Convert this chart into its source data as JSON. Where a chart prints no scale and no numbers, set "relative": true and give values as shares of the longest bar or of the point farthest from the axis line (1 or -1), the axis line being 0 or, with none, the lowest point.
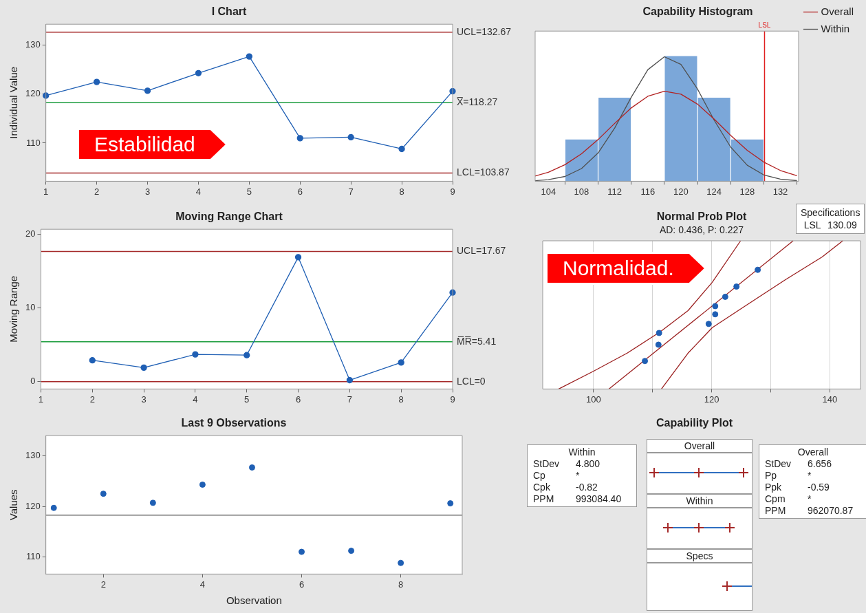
{
  "chart_data": [
    {
      "type": "line",
      "title": "I Chart",
      "ylabel": "Individual Value",
      "categories": [
        "1",
        "2",
        "3",
        "4",
        "5",
        "6",
        "7",
        "8",
        "9"
      ],
      "values": [
        119.7,
        122.5,
        120.7,
        124.3,
        127.7,
        111.0,
        111.2,
        108.8,
        120.6
      ],
      "color": "#1f5fb4",
      "marker": "circle",
      "ylim": [
        102.2,
        134.3
      ],
      "yticks": [
        110,
        120,
        130
      ],
      "ref_lines": [
        {
          "axis": "y",
          "value": 132.67,
          "label": "UCL=132.67",
          "color": "#a52a2a"
        },
        {
          "axis": "y",
          "value": 118.27,
          "label": "X̅=118.27",
          "color": "#1a9c3c"
        },
        {
          "axis": "y",
          "value": 103.87,
          "label": "LCL=103.87",
          "color": "#a52a2a"
        }
      ],
      "annotations": [
        "Estabilidad"
      ]
    },
    {
      "type": "histogram",
      "title": "Capability Histogram",
      "relative": true,
      "bins": [
        106,
        110,
        114,
        118,
        122,
        126,
        130
      ],
      "values": [
        0.333,
        0.667,
        0,
        1,
        0.667,
        0.333
      ],
      "color": "#7ba7d9",
      "xlim": [
        102.4,
        134.2
      ],
      "xticks": [
        104,
        108,
        112,
        116,
        120,
        124,
        128,
        132
      ],
      "series": [
        {
          "name": "Overall",
          "type": "line",
          "color": "#b22222",
          "marker": "none",
          "x": [
            102.4,
            104,
            106,
            108,
            110,
            112,
            114,
            116,
            118,
            120,
            122,
            124,
            126,
            128,
            130,
            132,
            134
          ],
          "values": [
            0.042,
            0.072,
            0.132,
            0.219,
            0.333,
            0.462,
            0.586,
            0.679,
            0.719,
            0.696,
            0.616,
            0.497,
            0.367,
            0.247,
            0.153,
            0.086,
            0.044
          ]
        },
        {
          "name": "Within",
          "type": "line",
          "color": "#505050",
          "marker": "none",
          "x": [
            102.4,
            104,
            106,
            108,
            110,
            112,
            114,
            116,
            118,
            120,
            122,
            124,
            126,
            128,
            130,
            132,
            134
          ],
          "values": [
            0.004,
            0.012,
            0.038,
            0.101,
            0.226,
            0.425,
            0.671,
            0.891,
            0.995,
            0.934,
            0.737,
            0.489,
            0.273,
            0.128,
            0.05,
            0.017,
            0.005
          ]
        }
      ],
      "ref_lines": [
        {
          "axis": "x",
          "value": 130.09,
          "label": "LSL",
          "color": "#e02020"
        }
      ],
      "legend": "top right",
      "annotations": [
        "Specifications",
        "LSL 130.09"
      ]
    },
    {
      "type": "line",
      "title": "Moving Range Chart",
      "ylabel": "Moving Range",
      "categories": [
        "1",
        "2",
        "3",
        "4",
        "5",
        "6",
        "7",
        "8",
        "9"
      ],
      "values": [
        null,
        2.9,
        1.9,
        3.7,
        3.6,
        16.9,
        0.2,
        2.6,
        12.1
      ],
      "color": "#1f5fb4",
      "marker": "circle",
      "ylim": [
        -1.0,
        20.7
      ],
      "yticks": [
        0,
        10,
        20
      ],
      "ref_lines": [
        {
          "axis": "y",
          "value": 17.67,
          "label": "UCL=17.67",
          "color": "#a52a2a"
        },
        {
          "axis": "y",
          "value": 5.41,
          "label": "M̅R̅=5.41",
          "color": "#1a9c3c"
        },
        {
          "axis": "y",
          "value": 0,
          "label": "LCL=0",
          "color": "#a52a2a"
        }
      ]
    },
    {
      "type": "scatter",
      "title": "Normal Prob Plot",
      "subtitle": "AD: 0.436, P: 0.227",
      "relative": true,
      "x": [
        108.7,
        111.0,
        111.1,
        119.5,
        120.6,
        120.6,
        122.3,
        124.2,
        127.8
      ],
      "values": [
        0.189,
        0.299,
        0.378,
        0.439,
        0.504,
        0.559,
        0.622,
        0.691,
        0.804
      ],
      "color": "#1f5fb4",
      "marker": "circle",
      "xlim": [
        91.4,
        145.2
      ],
      "xticks": [
        100,
        {
          "value": 110,
          "label": null
        },
        120,
        {
          "value": 130,
          "label": null
        },
        140
      ],
      "grid": "x",
      "series": [
        {
          "type": "line",
          "color": "#9b2020",
          "marker": "none",
          "x": [
            94.1,
            99.9,
            105.7,
            111.3,
            116.0,
            120.1,
            124.9
          ],
          "values": [
            0,
            0.118,
            0.242,
            0.386,
            0.529,
            0.72,
            1
          ]
        },
        {
          "type": "line",
          "color": "#9b2020",
          "marker": "none",
          "x": [
            102.6,
            133.8
          ],
          "values": [
            0,
            1
          ]
        },
        {
          "type": "line",
          "color": "#9b2020",
          "marker": "none",
          "x": [
            111.5,
            116.0,
            120.1,
            126.3,
            132.5,
            138.7,
            142.2
          ],
          "values": [
            0,
            0.242,
            0.414,
            0.576,
            0.738,
            0.891,
            1
          ]
        }
      ],
      "annotations": [
        "Normalidad."
      ]
    },
    {
      "type": "scatter",
      "title": "Last 9 Observations",
      "xlabel": "Observation",
      "ylabel": "Values",
      "x": [
        1,
        2,
        3,
        4,
        5,
        6,
        7,
        8,
        9
      ],
      "values": [
        119.7,
        122.5,
        120.7,
        124.3,
        127.7,
        111.0,
        111.2,
        108.8,
        120.6
      ],
      "color": "#1f5fb4",
      "marker": "circle",
      "xlim": [
        0.84,
        9.24
      ],
      "xticks": [
        2,
        4,
        6,
        8
      ],
      "ylim": [
        106.6,
        134
      ],
      "yticks": [
        110,
        120,
        130
      ],
      "ref_lines": [
        {
          "axis": "y",
          "value": 118.27,
          "color": "#707070"
        }
      ]
    },
    {
      "type": "other",
      "title": "Capability Plot",
      "annotations": [
        "Within",
        "StDev",
        "4.800",
        "Cp",
        "*",
        "Cpk",
        "-0.82",
        "PPM",
        "993084.40",
        "Overall",
        "Within",
        "Specs",
        "Overall",
        "StDev",
        "6.656",
        "Pp",
        "*",
        "Ppk",
        "-0.59",
        "Cpm",
        "*",
        "PPM",
        "962070.87"
      ]
    }
  ]
}
